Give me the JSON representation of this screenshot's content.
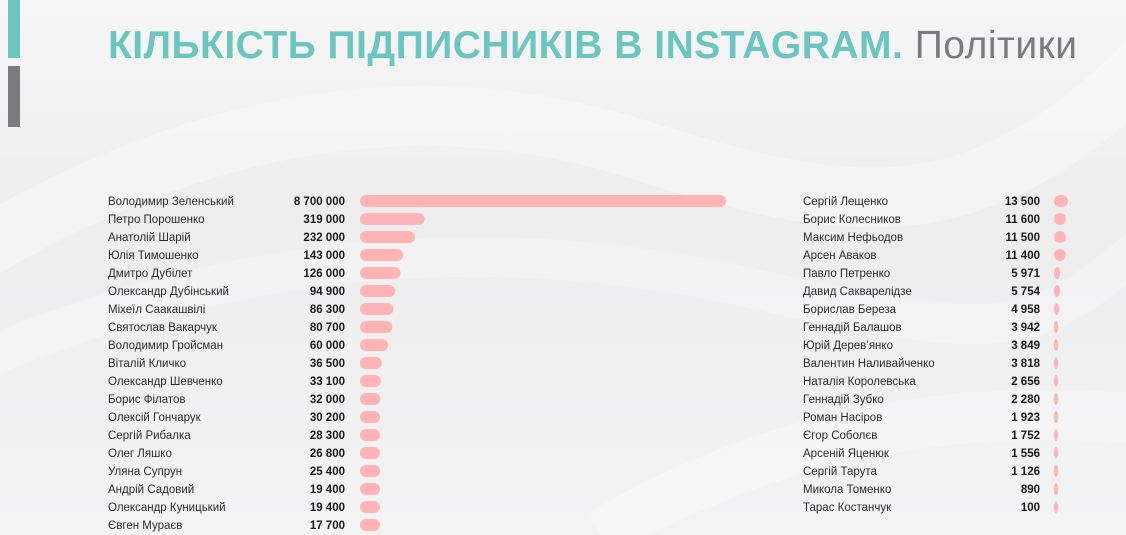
{
  "title": {
    "main": "КІЛЬКІСТЬ ПІДПИСНИКІВ В INSTAGRAM.",
    "sub": "Політики"
  },
  "colors": {
    "teal": "#6cc6bf",
    "gray": "#7b7b7d",
    "bar": "#ffb3b4",
    "text": "#2b2b2b"
  },
  "chart_data": {
    "type": "bar",
    "orientation": "horizontal",
    "title": "КІЛЬКІСТЬ ПІДПИСНИКІВ В INSTAGRAM. Політики",
    "max_value": 8700000,
    "panels": [
      {
        "items": [
          {
            "name": "Володимир Зеленський",
            "label": "8 700 000",
            "value": 8700000
          },
          {
            "name": "Петро Порошенко",
            "label": "319 000",
            "value": 319000
          },
          {
            "name": "Анатолій Шарій",
            "label": "232 000",
            "value": 232000
          },
          {
            "name": "Юлія Тимошенко",
            "label": "143 000",
            "value": 143000
          },
          {
            "name": "Дмитро Дубілет",
            "label": "126 000",
            "value": 126000
          },
          {
            "name": "Олександр Дубінський",
            "label": "94 900",
            "value": 94900
          },
          {
            "name": "Міхеїл Саакашвілі",
            "label": "86 300",
            "value": 86300
          },
          {
            "name": "Святослав Вакарчук",
            "label": "80 700",
            "value": 80700
          },
          {
            "name": "Володимир Гройсман",
            "label": "60 000",
            "value": 60000
          },
          {
            "name": "Віталій Кличко",
            "label": "36 500",
            "value": 36500
          },
          {
            "name": "Олександр Шевченко",
            "label": "33 100",
            "value": 33100
          },
          {
            "name": "Борис Філатов",
            "label": "32 000",
            "value": 32000
          },
          {
            "name": "Олексій Гончарук",
            "label": "30 200",
            "value": 30200
          },
          {
            "name": "Сергій Рибалка",
            "label": "28 300",
            "value": 28300
          },
          {
            "name": "Олег Ляшко",
            "label": "26 800",
            "value": 26800
          },
          {
            "name": "Уляна Супрун",
            "label": "25 400",
            "value": 25400
          },
          {
            "name": "Андрій Садовий",
            "label": "19 400",
            "value": 19400
          },
          {
            "name": "Олександр Куницький",
            "label": "19 400",
            "value": 19400
          },
          {
            "name": "Євген Мураєв",
            "label": "17 700",
            "value": 17700
          }
        ]
      },
      {
        "items": [
          {
            "name": "Сергій Лещенко",
            "label": "13 500",
            "value": 13500
          },
          {
            "name": "Борис Колесников",
            "label": "11 600",
            "value": 11600
          },
          {
            "name": "Максим Нефьодов",
            "label": "11 500",
            "value": 11500
          },
          {
            "name": "Арсен Аваков",
            "label": "11 400",
            "value": 11400
          },
          {
            "name": "Павло Петренко",
            "label": "5 971",
            "value": 5971
          },
          {
            "name": "Давид Сакварелідзе",
            "label": "5 754",
            "value": 5754
          },
          {
            "name": "Борислав Береза",
            "label": "4 958",
            "value": 4958
          },
          {
            "name": "Геннадій Балашов",
            "label": "3 942",
            "value": 3942
          },
          {
            "name": "Юрій Дерев’янко",
            "label": "3 849",
            "value": 3849
          },
          {
            "name": "Валентин Наливайченко",
            "label": "3 818",
            "value": 3818
          },
          {
            "name": "Наталія Королевська",
            "label": "2 656",
            "value": 2656
          },
          {
            "name": "Геннадій Зубко",
            "label": "2 280",
            "value": 2280
          },
          {
            "name": "Роман Насіров",
            "label": "1 923",
            "value": 1923
          },
          {
            "name": "Єгор Соболєв",
            "label": "1 752",
            "value": 1752
          },
          {
            "name": "Арсеній Яценюк",
            "label": "1 556",
            "value": 1556
          },
          {
            "name": "Сергій Тарута",
            "label": "1 126",
            "value": 1126
          },
          {
            "name": "Микола Томенко",
            "label": "890",
            "value": 890
          },
          {
            "name": "Тарас Костанчук",
            "label": "100",
            "value": 100
          }
        ]
      }
    ]
  }
}
